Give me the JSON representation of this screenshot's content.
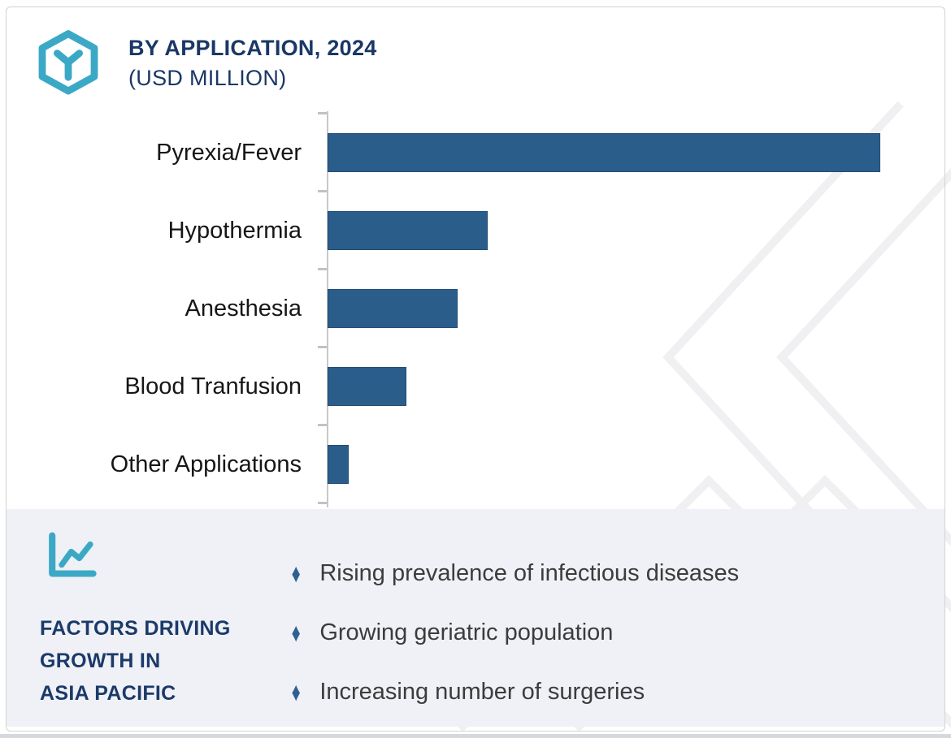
{
  "header": {
    "title": "BY APPLICATION, 2024",
    "subtitle": "(USD MILLION)",
    "logo_icon": "hexagon-y-logo-icon"
  },
  "chart_data": {
    "type": "bar",
    "orientation": "horizontal",
    "title": "BY APPLICATION, 2024 (USD MILLION)",
    "categories": [
      "Pyrexia/Fever",
      "Hypothermia",
      "Anesthesia",
      "Blood Tranfusion",
      "Other Applications"
    ],
    "values_relative_pct_of_max": [
      100,
      29,
      23.5,
      14.3,
      3.8
    ],
    "value_labels_shown": false,
    "numeric_axis_labels_shown": false,
    "gridlines": false,
    "legend": "none",
    "bar_color": "#2b5d8b"
  },
  "panel": {
    "icon": "line-chart-icon",
    "heading_lines": [
      "FACTORS DRIVING",
      "GROWTH IN",
      "ASIA PACIFIC"
    ],
    "bullet_marker_glyph": "♦",
    "bullets": [
      "Rising prevalence of infectious diseases",
      "Growing geriatric population",
      "Increasing number of surgeries"
    ]
  },
  "colors": {
    "accent_teal": "#3ba9c6",
    "navy": "#1a3766",
    "bar_blue": "#2b5d8b",
    "bullet_blue": "#2e6093",
    "panel_bg": "#eff1f6",
    "watermark_gray": "#f0f0f2",
    "axis_gray": "#c8c8c8"
  }
}
